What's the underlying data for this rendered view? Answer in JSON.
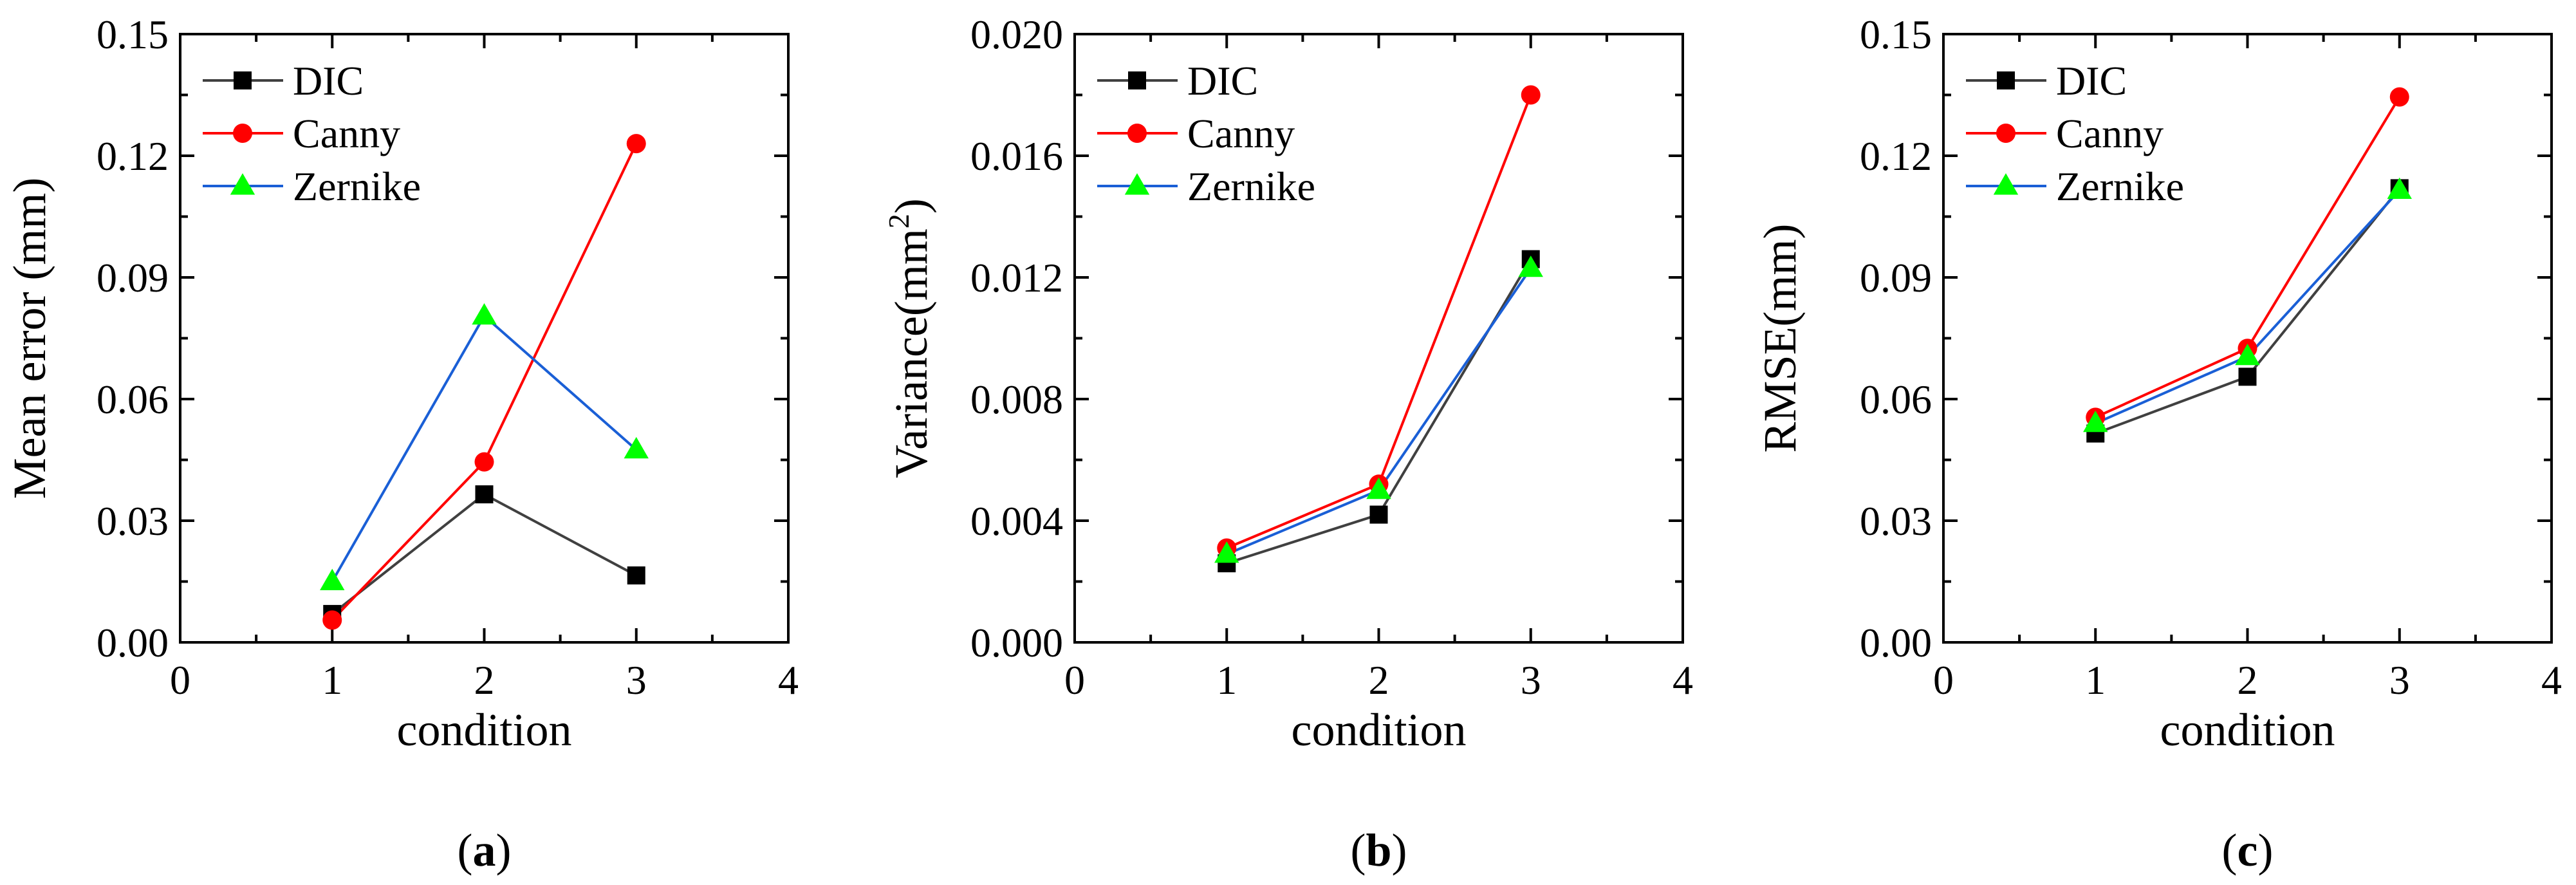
{
  "chart_data": [
    {
      "type": "line",
      "panel_label": "a",
      "xlabel": "condition",
      "ylabel": "Mean error (mm)",
      "xlim": [
        0,
        4
      ],
      "ylim": [
        0,
        0.15
      ],
      "x_ticks": [
        "0",
        "1",
        "2",
        "3",
        "4"
      ],
      "y_ticks": [
        "0.00",
        "0.03",
        "0.06",
        "0.09",
        "0.12",
        "0.15"
      ],
      "legend_position": "top-left",
      "x": [
        1,
        2,
        3
      ],
      "series": [
        {
          "name": "DIC",
          "values": [
            0.007,
            0.0365,
            0.0165
          ],
          "color": "#404040",
          "marker_color": "#000000",
          "marker": "square"
        },
        {
          "name": "Canny",
          "values": [
            0.0055,
            0.0445,
            0.123
          ],
          "color": "#ff0000",
          "marker_color": "#ff0000",
          "marker": "circle"
        },
        {
          "name": "Zernike",
          "values": [
            0.015,
            0.0805,
            0.0475
          ],
          "color": "#1a5fd6",
          "marker_color": "#00ff00",
          "marker": "triangle"
        }
      ]
    },
    {
      "type": "line",
      "panel_label": "b",
      "xlabel": "condition",
      "ylabel": "Variance(mm",
      "ylabel_sup": "2",
      "ylabel_tail": ")",
      "xlim": [
        0,
        4
      ],
      "ylim": [
        0,
        0.02
      ],
      "x_ticks": [
        "0",
        "1",
        "2",
        "3",
        "4"
      ],
      "y_ticks": [
        "0.000",
        "0.004",
        "0.008",
        "0.012",
        "0.016",
        "0.020"
      ],
      "legend_position": "top-left",
      "x": [
        1,
        2,
        3
      ],
      "series": [
        {
          "name": "DIC",
          "values": [
            0.0026,
            0.0042,
            0.0126
          ],
          "color": "#404040",
          "marker_color": "#000000",
          "marker": "square"
        },
        {
          "name": "Canny",
          "values": [
            0.0031,
            0.0052,
            0.018
          ],
          "color": "#ff0000",
          "marker_color": "#ff0000",
          "marker": "circle"
        },
        {
          "name": "Zernike",
          "values": [
            0.0029,
            0.005,
            0.0123
          ],
          "color": "#1a5fd6",
          "marker_color": "#00ff00",
          "marker": "triangle"
        }
      ]
    },
    {
      "type": "line",
      "panel_label": "c",
      "xlabel": "condition",
      "ylabel": "RMSE(mm)",
      "xlim": [
        0,
        4
      ],
      "ylim": [
        0,
        0.15
      ],
      "x_ticks": [
        "0",
        "1",
        "2",
        "3",
        "4"
      ],
      "y_ticks": [
        "0.00",
        "0.03",
        "0.06",
        "0.09",
        "0.12",
        "0.15"
      ],
      "legend_position": "top-left",
      "x": [
        1,
        2,
        3
      ],
      "series": [
        {
          "name": "DIC",
          "values": [
            0.0515,
            0.0655,
            0.112
          ],
          "color": "#404040",
          "marker_color": "#000000",
          "marker": "square"
        },
        {
          "name": "Canny",
          "values": [
            0.0555,
            0.0725,
            0.1345
          ],
          "color": "#ff0000",
          "marker_color": "#ff0000",
          "marker": "circle"
        },
        {
          "name": "Zernike",
          "values": [
            0.054,
            0.0705,
            0.1115
          ],
          "color": "#1a5fd6",
          "marker_color": "#00ff00",
          "marker": "triangle"
        }
      ]
    }
  ]
}
